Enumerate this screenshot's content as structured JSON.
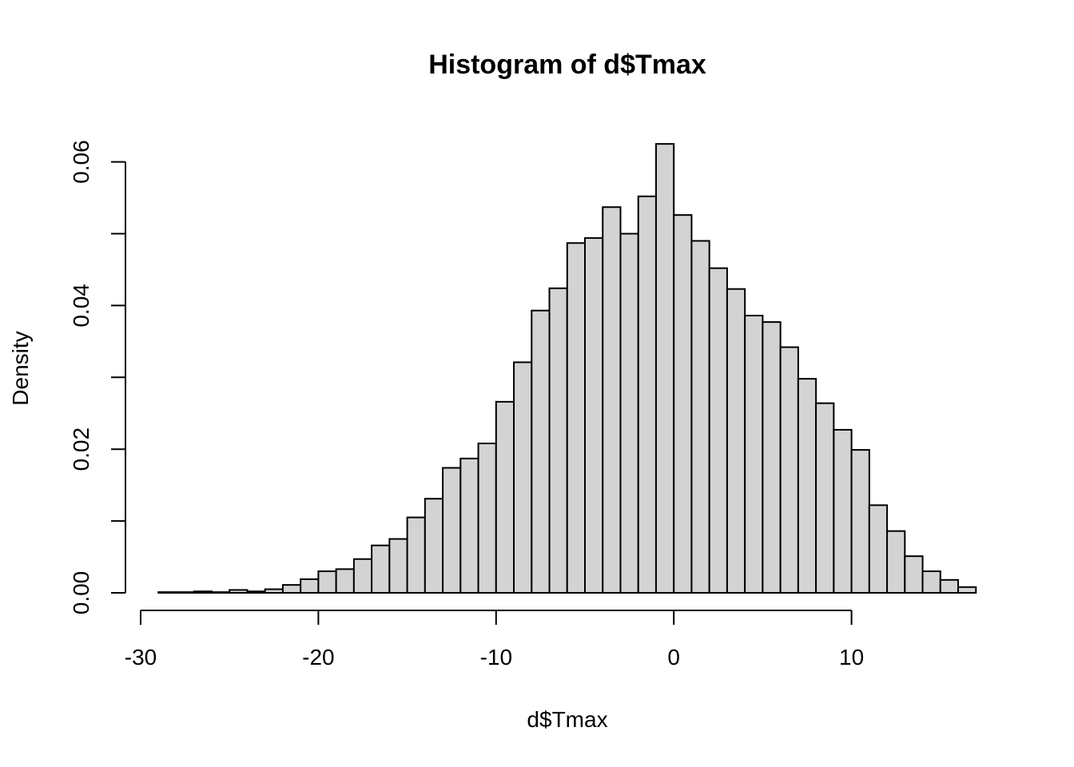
{
  "chart_data": {
    "type": "bar",
    "title": "Histogram of d$Tmax",
    "xlabel": "d$Tmax",
    "ylabel": "Density",
    "xlim": [
      -30,
      17
    ],
    "ylim": [
      0,
      0.06
    ],
    "grid": false,
    "x_ticks": [
      -30,
      -20,
      -10,
      0,
      10
    ],
    "x_tick_labels": [
      "-30",
      "-20",
      "-10",
      "0",
      "10"
    ],
    "y_ticks": [
      0,
      0.01,
      0.02,
      0.03,
      0.04,
      0.05,
      0.06
    ],
    "y_tick_labels": [
      "0.00",
      "",
      "0.02",
      "",
      "0.04",
      "",
      "0.06"
    ],
    "bin_width": 1,
    "bins_start": -29,
    "values": [
      0.0001,
      0.0001,
      0.0002,
      0.0001,
      0.0004,
      0.0002,
      0.0005,
      0.0011,
      0.0019,
      0.003,
      0.0033,
      0.0047,
      0.0066,
      0.0075,
      0.0105,
      0.0131,
      0.0174,
      0.0187,
      0.0208,
      0.0266,
      0.0321,
      0.0393,
      0.0424,
      0.0487,
      0.0494,
      0.0537,
      0.05,
      0.0552,
      0.0625,
      0.0526,
      0.049,
      0.0452,
      0.0423,
      0.0386,
      0.0377,
      0.0342,
      0.0298,
      0.0264,
      0.0227,
      0.0199,
      0.0122,
      0.0086,
      0.0051,
      0.003,
      0.0018,
      0.0008
    ]
  },
  "colors": {
    "bar_fill": "#d3d3d3",
    "bar_stroke": "#000000",
    "background": "#ffffff"
  }
}
